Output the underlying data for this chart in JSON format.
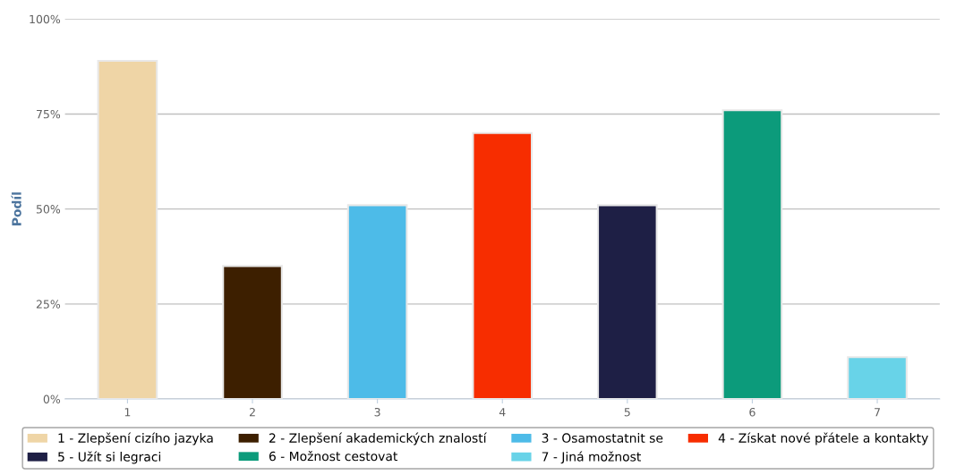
{
  "chart_data": {
    "type": "bar",
    "ylabel": "Podíl",
    "categories": [
      "1",
      "2",
      "3",
      "4",
      "5",
      "6",
      "7"
    ],
    "series": [
      {
        "name": "1 - Zlepšení cizího jazyka",
        "color": "#efd5a6",
        "values": [
          89,
          null,
          null,
          null,
          null,
          null,
          null
        ]
      },
      {
        "name": "2 - Zlepšení akademických znalostí",
        "color": "#3d1f00",
        "values": [
          null,
          35,
          null,
          null,
          null,
          null,
          null
        ]
      },
      {
        "name": "3 - Osamostatnit se",
        "color": "#4dbbe8",
        "values": [
          null,
          null,
          51,
          null,
          null,
          null,
          null
        ]
      },
      {
        "name": "4 - Získat nové přátele a kontakty",
        "color": "#f72d00",
        "values": [
          null,
          null,
          null,
          70,
          null,
          null,
          null
        ]
      },
      {
        "name": "5 - Užít si legraci",
        "color": "#1e1f45",
        "values": [
          null,
          null,
          null,
          null,
          51,
          null,
          null
        ]
      },
      {
        "name": "6 - Možnost cestovat",
        "color": "#0c9b7b",
        "values": [
          null,
          null,
          null,
          null,
          null,
          76,
          null
        ]
      },
      {
        "name": "7 - Jiná možnost",
        "color": "#68d3e8",
        "values": [
          null,
          null,
          null,
          null,
          null,
          null,
          11
        ]
      }
    ],
    "ylim": [
      0,
      100
    ],
    "yticks": [
      {
        "value": 0,
        "label": "0%"
      },
      {
        "value": 25,
        "label": "25%"
      },
      {
        "value": 50,
        "label": "50%"
      },
      {
        "value": 75,
        "label": "75%"
      },
      {
        "value": 100,
        "label": "100%"
      }
    ],
    "grid": "y",
    "legend": "bottom"
  }
}
